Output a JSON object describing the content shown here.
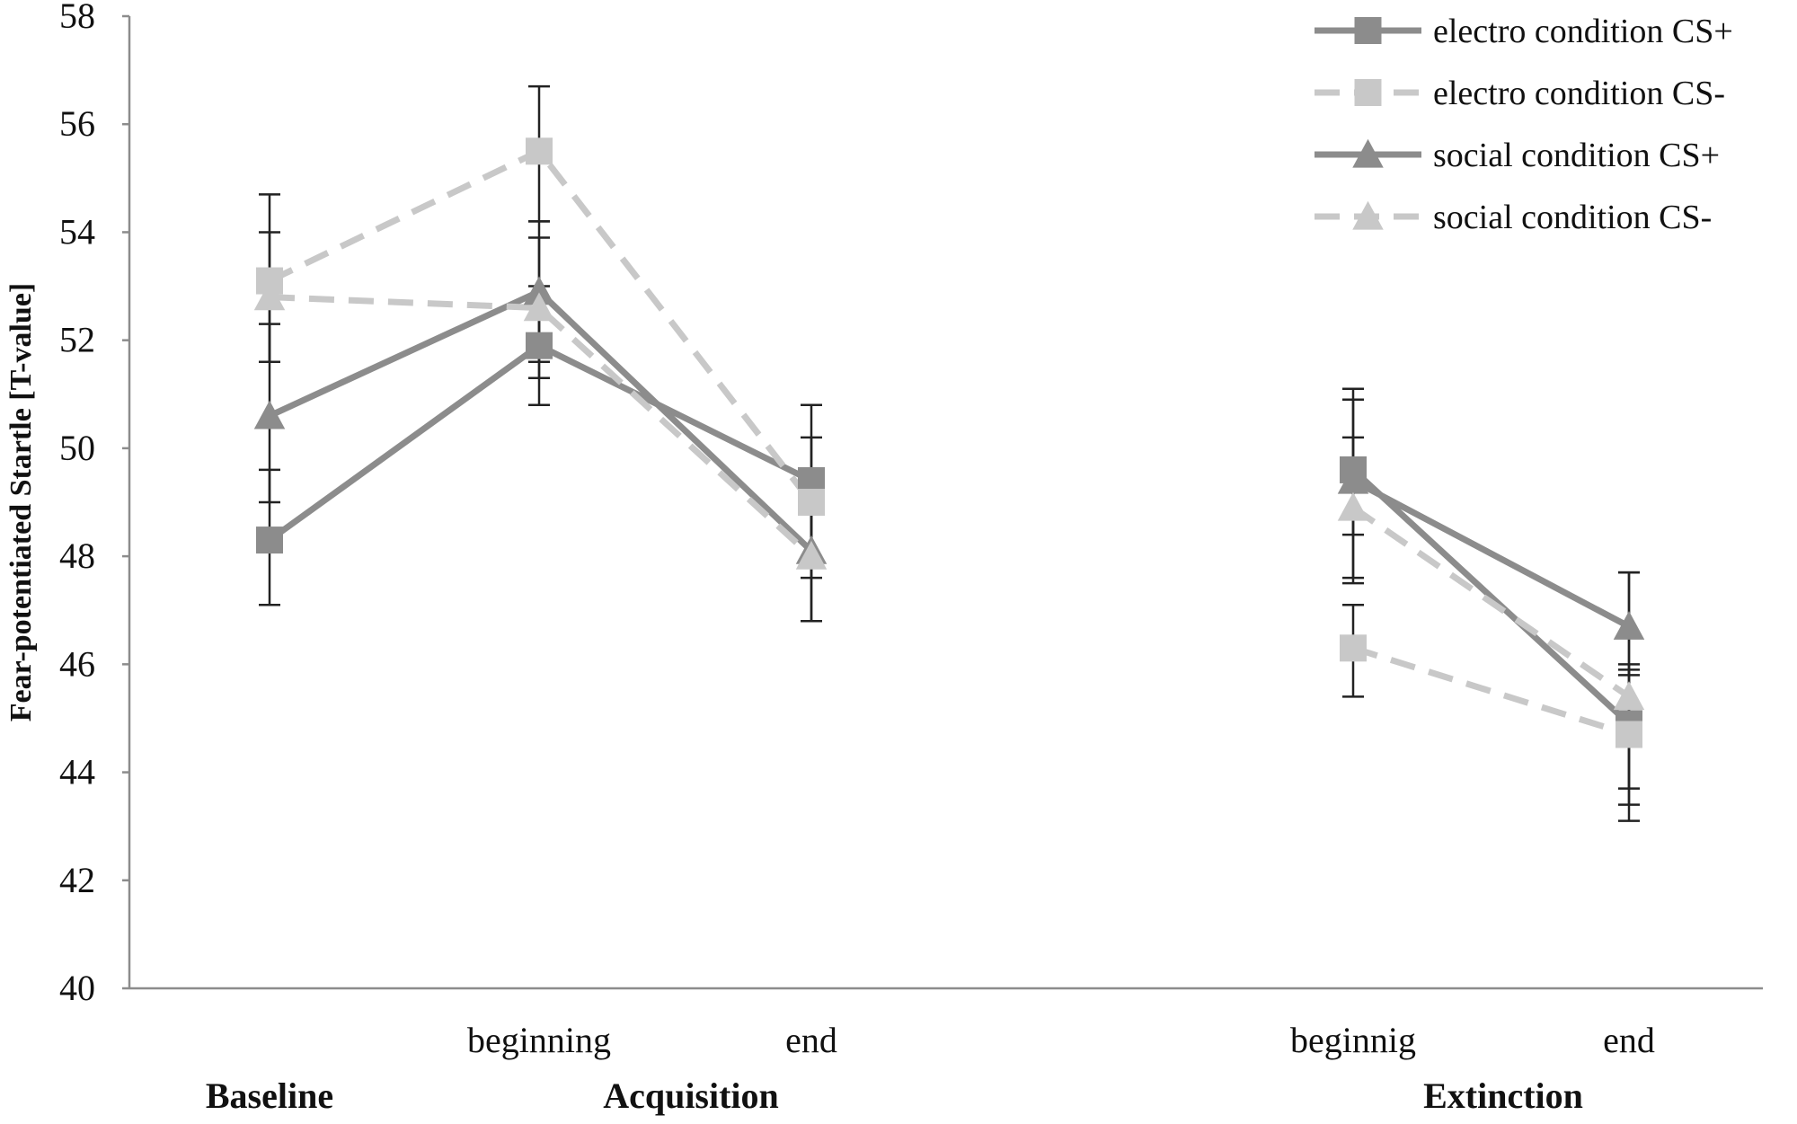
{
  "chart_data": {
    "type": "line",
    "ylabel": "Fear-potentiated Startle [T-value]",
    "ylim": [
      40,
      58
    ],
    "yticks": [
      40,
      42,
      44,
      46,
      48,
      50,
      52,
      54,
      56,
      58
    ],
    "grid": false,
    "legend_position": "top-right",
    "x_positions": [
      "baseline",
      "acq_beginning",
      "acq_end",
      "ext_beginning",
      "ext_end"
    ],
    "x_tick_labels": [
      "",
      "beginning",
      "end",
      "beginnig",
      "end"
    ],
    "phase_labels": [
      "Baseline",
      "Acquisition",
      "Extinction"
    ],
    "series": [
      {
        "name": "electro condition CS+",
        "style": "solid",
        "marker": "square",
        "color": "#8c8c8c",
        "values": [
          48.3,
          51.9,
          49.4,
          49.6,
          44.9
        ],
        "error_low": [
          47.1,
          50.8,
          48.0,
          48.4,
          43.7
        ],
        "error_high": [
          49.6,
          53.0,
          50.8,
          50.9,
          46.0
        ]
      },
      {
        "name": "electro condition CS-",
        "style": "dashed",
        "marker": "square",
        "color": "#c8c8c8",
        "values": [
          53.1,
          55.5,
          49.0,
          46.3,
          44.7
        ],
        "error_low": [
          51.6,
          54.2,
          47.6,
          45.4,
          43.1
        ],
        "error_high": [
          54.7,
          56.7,
          50.2,
          47.1,
          45.9
        ]
      },
      {
        "name": "social condition CS+",
        "style": "solid",
        "marker": "triangle",
        "color": "#8c8c8c",
        "values": [
          50.6,
          52.9,
          48.1,
          49.4,
          46.7
        ],
        "error_low": [
          49.0,
          51.6,
          46.8,
          47.5,
          45.8
        ],
        "error_high": [
          52.3,
          54.2,
          49.4,
          51.1,
          47.7
        ]
      },
      {
        "name": "social condition CS-",
        "style": "dashed",
        "marker": "triangle",
        "color": "#c8c8c8",
        "values": [
          52.8,
          52.6,
          48.0,
          48.9,
          45.4
        ],
        "error_low": [
          51.6,
          51.3,
          46.8,
          47.6,
          43.4
        ],
        "error_high": [
          54.0,
          53.9,
          49.3,
          50.2,
          47.7
        ]
      }
    ]
  }
}
